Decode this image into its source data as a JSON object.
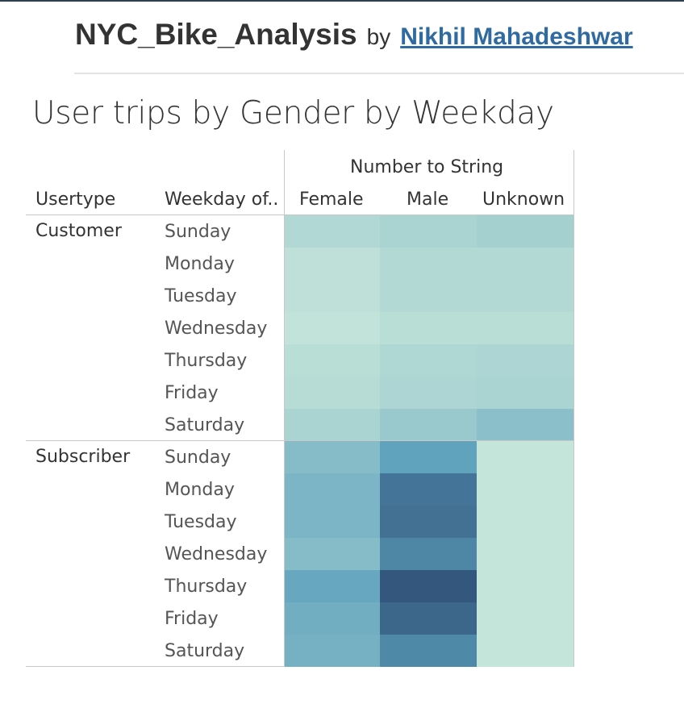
{
  "header": {
    "workbook_title": "NYC_Bike_Analysis",
    "by": "by",
    "author": "Nikhil Mahadeshwar"
  },
  "sheet_title": "User trips by Gender by Weekday",
  "chart_data": {
    "type": "heatmap",
    "title": "User trips by Gender by Weekday",
    "column_group_label": "Number to String",
    "row_header_labels": [
      "Usertype",
      "Weekday of.."
    ],
    "columns": [
      "Female",
      "Male",
      "Unknown"
    ],
    "row_groups": [
      "Customer",
      "Subscriber"
    ],
    "weekdays": [
      "Sunday",
      "Monday",
      "Tuesday",
      "Wednesday",
      "Thursday",
      "Friday",
      "Saturday"
    ],
    "intensity_scale": [
      0,
      1
    ],
    "color_low": "#c6e6da",
    "color_high": "#34577e",
    "values": [
      [
        0.1,
        0.13,
        0.16
      ],
      [
        0.04,
        0.09,
        0.09
      ],
      [
        0.04,
        0.09,
        0.09
      ],
      [
        0.02,
        0.06,
        0.06
      ],
      [
        0.06,
        0.11,
        0.12
      ],
      [
        0.07,
        0.12,
        0.13
      ],
      [
        0.13,
        0.21,
        0.28
      ],
      [
        0.3,
        0.48,
        0.01
      ],
      [
        0.35,
        0.8,
        0.01
      ],
      [
        0.35,
        0.82,
        0.01
      ],
      [
        0.3,
        0.68,
        0.01
      ],
      [
        0.45,
        1.0,
        0.01
      ],
      [
        0.4,
        0.9,
        0.01
      ],
      [
        0.38,
        0.66,
        0.01
      ]
    ]
  }
}
